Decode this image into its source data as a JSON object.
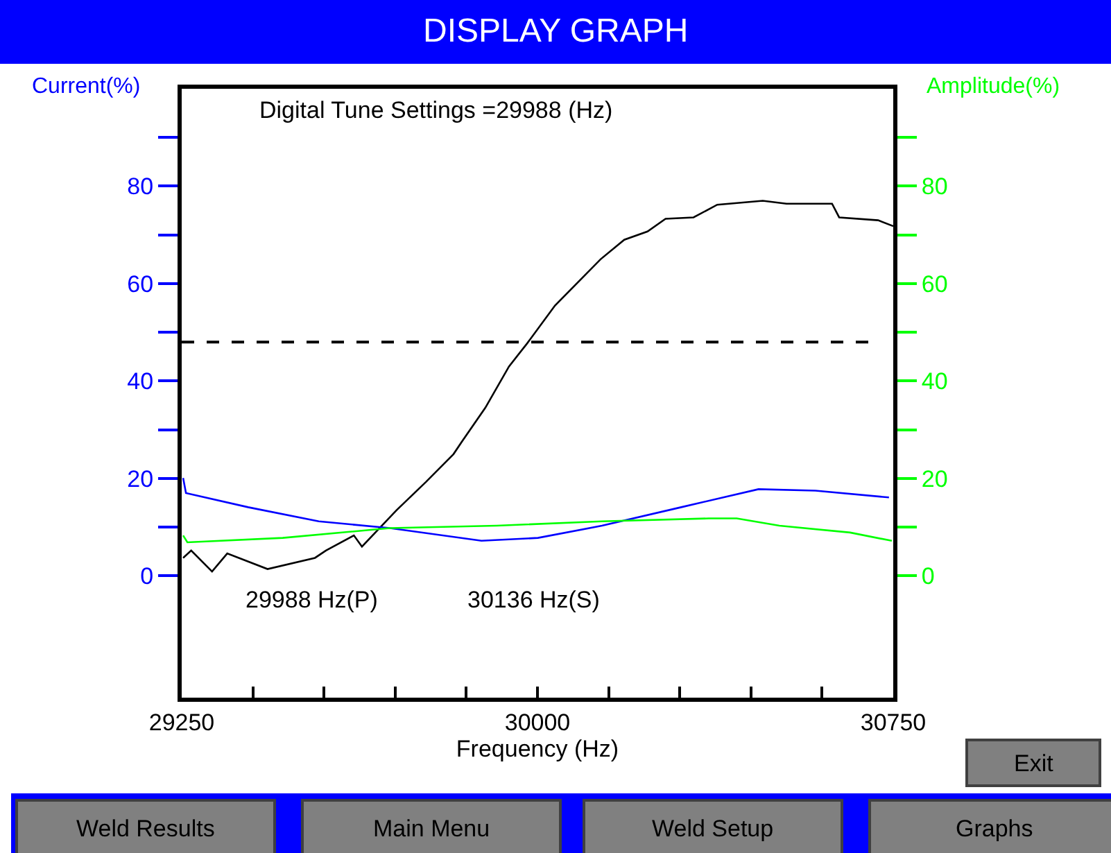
{
  "chart_data": {
    "type": "line",
    "title": "DISPLAY GRAPH",
    "xlabel": "Frequency (Hz)",
    "ylabel": "Current(%)",
    "y2label": "Amplitude(%)",
    "annotations": [
      "Digital Tune Settings =29988 (Hz)",
      "29988 Hz(P)",
      "30136 Hz(S)",
      "Exit",
      "Weld Results",
      "Main Menu",
      "Weld Setup",
      "Graphs"
    ],
    "series": [
      {
        "color": "#000000",
        "axis": "y",
        "x": [
          29253,
          29270,
          29314,
          29346,
          29431,
          29531,
          29554,
          29613,
          29630,
          29703,
          29765,
          29823,
          29841,
          29890,
          29940,
          29978,
          30037,
          30133,
          30183,
          30232,
          30270,
          30329,
          30379,
          30475,
          30525,
          30621,
          30636,
          30718,
          30750
        ],
        "values": [
          3.7,
          5.2,
          0.9,
          4.6,
          1.4,
          3.7,
          5.2,
          8.3,
          6,
          13.5,
          19.3,
          25,
          27.6,
          34.5,
          43,
          47.7,
          55.5,
          65,
          69,
          70.7,
          73.3,
          73.6,
          76.2,
          77,
          76.4,
          76.4,
          73.6,
          73,
          71.8
        ]
      },
      {
        "color": "#0000ff",
        "axis": "y",
        "x": [
          29253,
          29259,
          29390,
          29539,
          29689,
          29882,
          30001,
          30136,
          30303,
          30466,
          30586,
          30741
        ],
        "values": [
          20.1,
          17,
          14.1,
          11.2,
          9.8,
          7.2,
          7.8,
          10.3,
          14.1,
          17.8,
          17.5,
          16.1
        ]
      },
      {
        "color": "#00ff00",
        "axis": "y2",
        "x": [
          29253,
          29262,
          29463,
          29689,
          29914,
          30136,
          30361,
          30420,
          30510,
          30659,
          30747
        ],
        "values": [
          8.3,
          6.9,
          7.8,
          9.8,
          10.3,
          11.2,
          11.8,
          11.8,
          10.3,
          8.9,
          7.2
        ]
      }
    ],
    "ref_lines": [
      {
        "axis": "y",
        "value": 48,
        "color": "#000000",
        "line_style": "dashed"
      }
    ],
    "xlim": [
      29250,
      30750
    ],
    "xticks": [
      29250,
      {
        "value": 29400,
        "label": null
      },
      {
        "value": 29550,
        "label": null
      },
      {
        "value": 29700,
        "label": null
      },
      {
        "value": 29850,
        "label": null
      },
      30000,
      {
        "value": 30150,
        "label": null
      },
      {
        "value": 30300,
        "label": null
      },
      {
        "value": 30450,
        "label": null
      },
      {
        "value": 30600,
        "label": null
      },
      30750
    ],
    "ylim": [
      -25,
      100
    ],
    "yticks": [
      0,
      {
        "value": 10,
        "label": null
      },
      20,
      {
        "value": 30,
        "label": null
      },
      40,
      {
        "value": 50,
        "label": null
      },
      60,
      {
        "value": 70,
        "label": null
      },
      80,
      {
        "value": 90,
        "label": null
      }
    ],
    "y2lim": [
      -25,
      100
    ],
    "y2ticks": [
      0,
      {
        "value": 10,
        "label": null
      },
      20,
      {
        "value": 30,
        "label": null
      },
      40,
      {
        "value": 50,
        "label": null
      },
      60,
      {
        "value": 70,
        "label": null
      },
      80,
      {
        "value": 90,
        "label": null
      }
    ],
    "marker": "none",
    "line_style": "solid"
  }
}
